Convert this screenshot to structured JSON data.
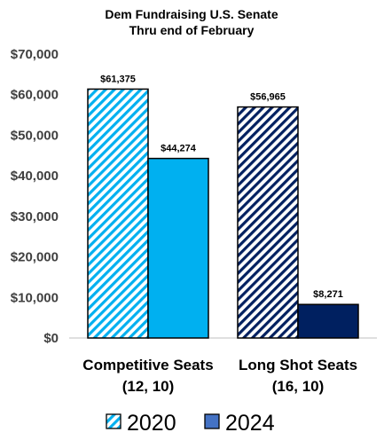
{
  "chart_data": {
    "type": "bar",
    "title": "Dem Fundraising U.S. Senate",
    "subtitle": "Thru end of February",
    "categories": [
      [
        "Competitive Seats",
        "(12, 10)"
      ],
      [
        "Long Shot Seats",
        "(16, 10)"
      ]
    ],
    "series": [
      {
        "name": "2020",
        "values": [
          61375,
          56965
        ],
        "labels": [
          "$61,375",
          "$56,965"
        ],
        "colors": [
          "#00B0F0",
          "#002060"
        ],
        "pattern": "diagonal-hatch"
      },
      {
        "name": "2024",
        "values": [
          44274,
          8271
        ],
        "labels": [
          "$44,274",
          "$8,271"
        ],
        "colors": [
          "#00B0F0",
          "#002060"
        ],
        "pattern": "solid"
      }
    ],
    "ylim": [
      0,
      70000
    ],
    "yticks": [
      0,
      10000,
      20000,
      30000,
      40000,
      50000,
      60000,
      70000
    ],
    "ytick_labels": [
      "$0",
      "$10,000",
      "$20,000",
      "$30,000",
      "$40,000",
      "$50,000",
      "$60,000",
      "$70,000"
    ],
    "grid": false,
    "legend_position": "bottom",
    "legend_color": "#4472C4"
  }
}
